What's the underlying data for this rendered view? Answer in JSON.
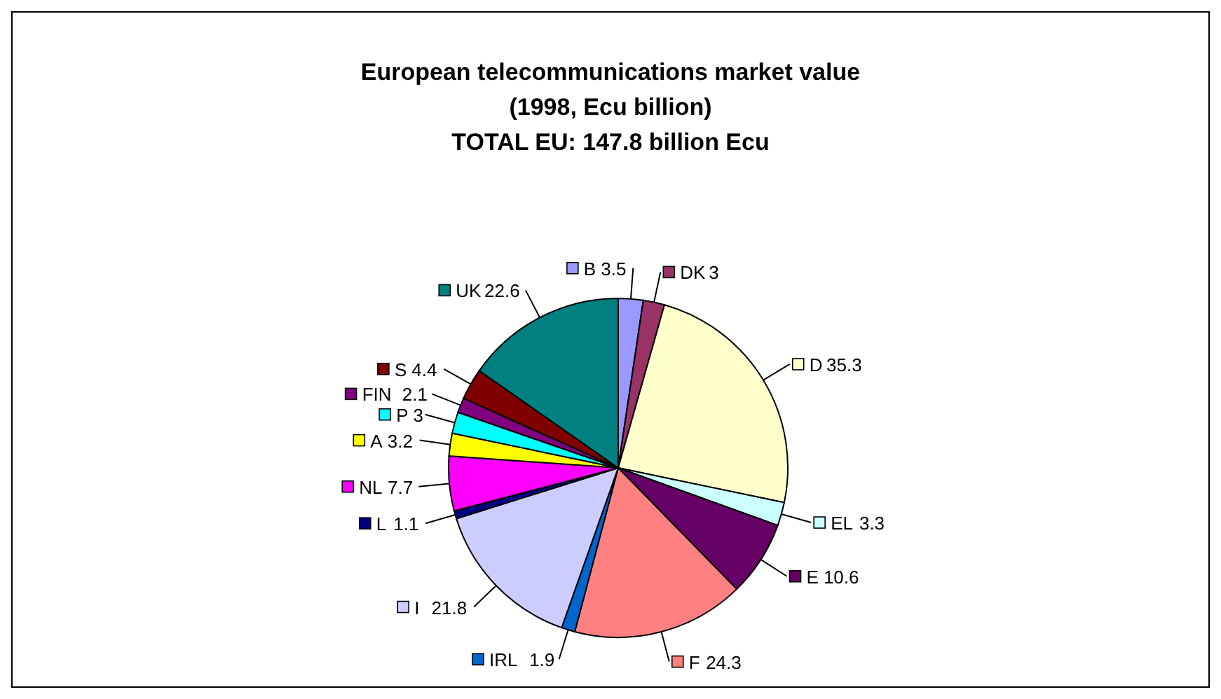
{
  "chart_data": {
    "type": "pie",
    "title": "European telecommunications market value",
    "subtitle": "(1998, Ecu billion)\nTOTAL EU: 147.8 billion Ecu",
    "categories": [
      "B",
      "DK",
      "D",
      "EL",
      "E",
      "F",
      "IRL",
      "I",
      "L",
      "NL",
      "A",
      "P",
      "FIN",
      "S",
      "UK"
    ],
    "values": [
      3.5,
      3,
      35.3,
      3.3,
      10.6,
      24.3,
      1.9,
      21.8,
      1.1,
      7.7,
      3.2,
      3,
      2.1,
      4.4,
      22.6
    ],
    "colors": [
      "#9999ff",
      "#993366",
      "#ffffcc",
      "#ccffff",
      "#660066",
      "#ff8080",
      "#0066cc",
      "#ccccff",
      "#000080",
      "#ff00ff",
      "#ffff00",
      "#00ffff",
      "#800080",
      "#800000",
      "#008080"
    ],
    "value_labels": [
      "3.5",
      "3",
      "35.3",
      "3.3",
      "10.6",
      "24.3",
      "1.9",
      "21.8",
      "1.1",
      "7.7",
      "3.2",
      "3",
      "2.1",
      "4.4",
      "22.6"
    ],
    "legend": true
  }
}
